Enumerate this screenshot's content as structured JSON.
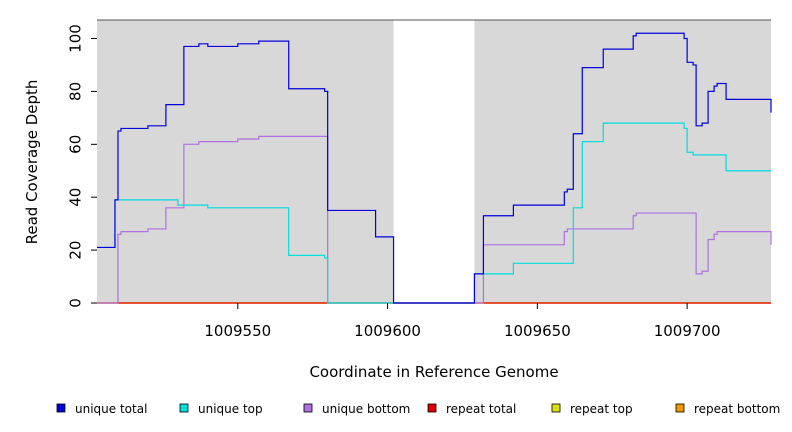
{
  "chart_data": {
    "type": "line",
    "xlabel": "Coordinate in Reference Genome",
    "ylabel": "Read Coverage Depth",
    "xlim": [
      1009503,
      1009728
    ],
    "ylim": [
      0,
      107
    ],
    "x_ticks": [
      1009550,
      1009600,
      1009650,
      1009700
    ],
    "y_ticks": [
      0,
      20,
      40,
      60,
      80,
      100
    ],
    "shaded_regions": [
      [
        1009503,
        1009602
      ],
      [
        1009629,
        1009728
      ]
    ],
    "legend_position": "bottom",
    "series": [
      {
        "name": "unique total",
        "color": "#0000dd",
        "points": [
          [
            1009503,
            21
          ],
          [
            1009509,
            21
          ],
          [
            1009509,
            39
          ],
          [
            1009510,
            39
          ],
          [
            1009510,
            65
          ],
          [
            1009511,
            65
          ],
          [
            1009511,
            66
          ],
          [
            1009520,
            66
          ],
          [
            1009520,
            67
          ],
          [
            1009526,
            67
          ],
          [
            1009526,
            75
          ],
          [
            1009532,
            75
          ],
          [
            1009532,
            97
          ],
          [
            1009537,
            97
          ],
          [
            1009537,
            98
          ],
          [
            1009540,
            98
          ],
          [
            1009540,
            97
          ],
          [
            1009550,
            97
          ],
          [
            1009550,
            98
          ],
          [
            1009557,
            98
          ],
          [
            1009557,
            99
          ],
          [
            1009567,
            99
          ],
          [
            1009567,
            81
          ],
          [
            1009579,
            81
          ],
          [
            1009579,
            80
          ],
          [
            1009580,
            80
          ],
          [
            1009580,
            35
          ],
          [
            1009596,
            35
          ],
          [
            1009596,
            25
          ],
          [
            1009602,
            25
          ],
          [
            1009602,
            0
          ],
          [
            1009629,
            0
          ],
          [
            1009629,
            11
          ],
          [
            1009632,
            11
          ],
          [
            1009632,
            33
          ],
          [
            1009642,
            33
          ],
          [
            1009642,
            37
          ],
          [
            1009659,
            37
          ],
          [
            1009659,
            42
          ],
          [
            1009660,
            42
          ],
          [
            1009660,
            43
          ],
          [
            1009662,
            43
          ],
          [
            1009662,
            64
          ],
          [
            1009665,
            64
          ],
          [
            1009665,
            89
          ],
          [
            1009672,
            89
          ],
          [
            1009672,
            96
          ],
          [
            1009682,
            96
          ],
          [
            1009682,
            101
          ],
          [
            1009683,
            101
          ],
          [
            1009683,
            102
          ],
          [
            1009699,
            102
          ],
          [
            1009699,
            100
          ],
          [
            1009700,
            100
          ],
          [
            1009700,
            91
          ],
          [
            1009702,
            91
          ],
          [
            1009702,
            90
          ],
          [
            1009703,
            90
          ],
          [
            1009703,
            67
          ],
          [
            1009705,
            67
          ],
          [
            1009705,
            68
          ],
          [
            1009707,
            68
          ],
          [
            1009707,
            80
          ],
          [
            1009709,
            80
          ],
          [
            1009709,
            82
          ],
          [
            1009710,
            82
          ],
          [
            1009710,
            83
          ],
          [
            1009713,
            83
          ],
          [
            1009713,
            77
          ],
          [
            1009728,
            77
          ],
          [
            1009728,
            72
          ]
        ]
      },
      {
        "name": "unique top",
        "color": "#00dddd",
        "points": [
          [
            1009503,
            21
          ],
          [
            1009509,
            21
          ],
          [
            1009509,
            39
          ],
          [
            1009530,
            39
          ],
          [
            1009530,
            37
          ],
          [
            1009540,
            37
          ],
          [
            1009540,
            36
          ],
          [
            1009567,
            36
          ],
          [
            1009567,
            18
          ],
          [
            1009579,
            18
          ],
          [
            1009579,
            17
          ],
          [
            1009580,
            17
          ],
          [
            1009580,
            0
          ],
          [
            1009629,
            0
          ],
          [
            1009629,
            11
          ],
          [
            1009642,
            11
          ],
          [
            1009642,
            15
          ],
          [
            1009662,
            15
          ],
          [
            1009662,
            36
          ],
          [
            1009665,
            36
          ],
          [
            1009665,
            61
          ],
          [
            1009672,
            61
          ],
          [
            1009672,
            68
          ],
          [
            1009699,
            68
          ],
          [
            1009699,
            66
          ],
          [
            1009700,
            66
          ],
          [
            1009700,
            57
          ],
          [
            1009702,
            57
          ],
          [
            1009702,
            56
          ],
          [
            1009713,
            56
          ],
          [
            1009713,
            50
          ],
          [
            1009728,
            50
          ]
        ]
      },
      {
        "name": "unique bottom",
        "color": "#b070e0",
        "points": [
          [
            1009503,
            0
          ],
          [
            1009510,
            0
          ],
          [
            1009510,
            26
          ],
          [
            1009511,
            26
          ],
          [
            1009511,
            27
          ],
          [
            1009520,
            27
          ],
          [
            1009520,
            28
          ],
          [
            1009526,
            28
          ],
          [
            1009526,
            36
          ],
          [
            1009532,
            36
          ],
          [
            1009532,
            60
          ],
          [
            1009537,
            60
          ],
          [
            1009537,
            61
          ],
          [
            1009550,
            61
          ],
          [
            1009550,
            62
          ],
          [
            1009557,
            62
          ],
          [
            1009557,
            63
          ],
          [
            1009580,
            63
          ],
          [
            1009580,
            0
          ],
          [
            1009632,
            0
          ],
          [
            1009632,
            22
          ],
          [
            1009659,
            22
          ],
          [
            1009659,
            27
          ],
          [
            1009660,
            27
          ],
          [
            1009660,
            28
          ],
          [
            1009682,
            28
          ],
          [
            1009682,
            33
          ],
          [
            1009683,
            33
          ],
          [
            1009683,
            34
          ],
          [
            1009703,
            34
          ],
          [
            1009703,
            11
          ],
          [
            1009705,
            11
          ],
          [
            1009705,
            12
          ],
          [
            1009707,
            12
          ],
          [
            1009707,
            24
          ],
          [
            1009709,
            24
          ],
          [
            1009709,
            26
          ],
          [
            1009710,
            26
          ],
          [
            1009710,
            27
          ],
          [
            1009728,
            27
          ],
          [
            1009728,
            22
          ]
        ]
      },
      {
        "name": "repeat total",
        "color": "#dd0000",
        "points": [
          [
            1009503,
            0
          ],
          [
            1009728,
            0
          ]
        ]
      },
      {
        "name": "repeat top",
        "color": "#dddd00",
        "points": [
          [
            1009503,
            0
          ],
          [
            1009728,
            0
          ]
        ]
      },
      {
        "name": "repeat bottom",
        "color": "#ee9900",
        "points": [
          [
            1009503,
            0
          ],
          [
            1009728,
            0
          ]
        ]
      }
    ]
  }
}
